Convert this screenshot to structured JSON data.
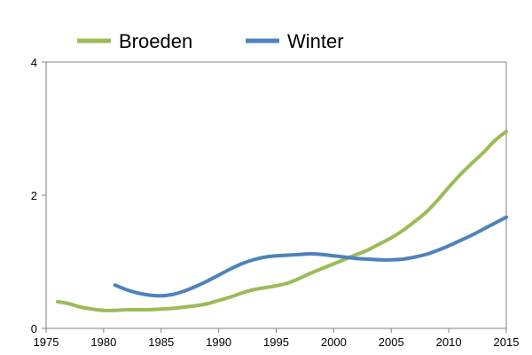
{
  "chart_data": {
    "type": "line",
    "title": "",
    "xlabel": "",
    "ylabel": "",
    "xlim": [
      1975,
      2015
    ],
    "ylim": [
      0,
      4
    ],
    "x_ticks": [
      1975,
      1980,
      1985,
      1990,
      1995,
      2000,
      2005,
      2010,
      2015
    ],
    "y_ticks": [
      0,
      2,
      4
    ],
    "grid": false,
    "legend_position": "top",
    "series": [
      {
        "name": "Broeden",
        "color": "#9bbb59",
        "x": [
          1976,
          1977,
          1978,
          1979,
          1980,
          1981,
          1982,
          1983,
          1984,
          1985,
          1986,
          1987,
          1988,
          1989,
          1990,
          1991,
          1992,
          1993,
          1994,
          1995,
          1996,
          1997,
          1998,
          1999,
          2000,
          2001,
          2002,
          2003,
          2004,
          2005,
          2006,
          2007,
          2008,
          2009,
          2010,
          2011,
          2012,
          2013,
          2014,
          2015
        ],
        "y": [
          0.4,
          0.37,
          0.32,
          0.29,
          0.27,
          0.27,
          0.28,
          0.28,
          0.28,
          0.29,
          0.3,
          0.32,
          0.34,
          0.37,
          0.42,
          0.47,
          0.53,
          0.58,
          0.61,
          0.64,
          0.68,
          0.75,
          0.83,
          0.9,
          0.97,
          1.04,
          1.11,
          1.18,
          1.27,
          1.36,
          1.47,
          1.6,
          1.74,
          1.92,
          2.12,
          2.31,
          2.48,
          2.64,
          2.82,
          2.96
        ]
      },
      {
        "name": "Winter",
        "color": "#4f81bd",
        "x": [
          1981,
          1982,
          1983,
          1984,
          1985,
          1986,
          1987,
          1988,
          1989,
          1990,
          1991,
          1992,
          1993,
          1994,
          1995,
          1996,
          1997,
          1998,
          1999,
          2000,
          2001,
          2002,
          2003,
          2004,
          2005,
          2006,
          2007,
          2008,
          2009,
          2010,
          2011,
          2012,
          2013,
          2014,
          2015
        ],
        "y": [
          0.65,
          0.58,
          0.53,
          0.5,
          0.49,
          0.51,
          0.56,
          0.63,
          0.71,
          0.8,
          0.89,
          0.97,
          1.03,
          1.07,
          1.09,
          1.1,
          1.11,
          1.12,
          1.11,
          1.09,
          1.07,
          1.05,
          1.04,
          1.03,
          1.03,
          1.04,
          1.07,
          1.11,
          1.17,
          1.24,
          1.32,
          1.4,
          1.49,
          1.58,
          1.67
        ]
      }
    ]
  }
}
